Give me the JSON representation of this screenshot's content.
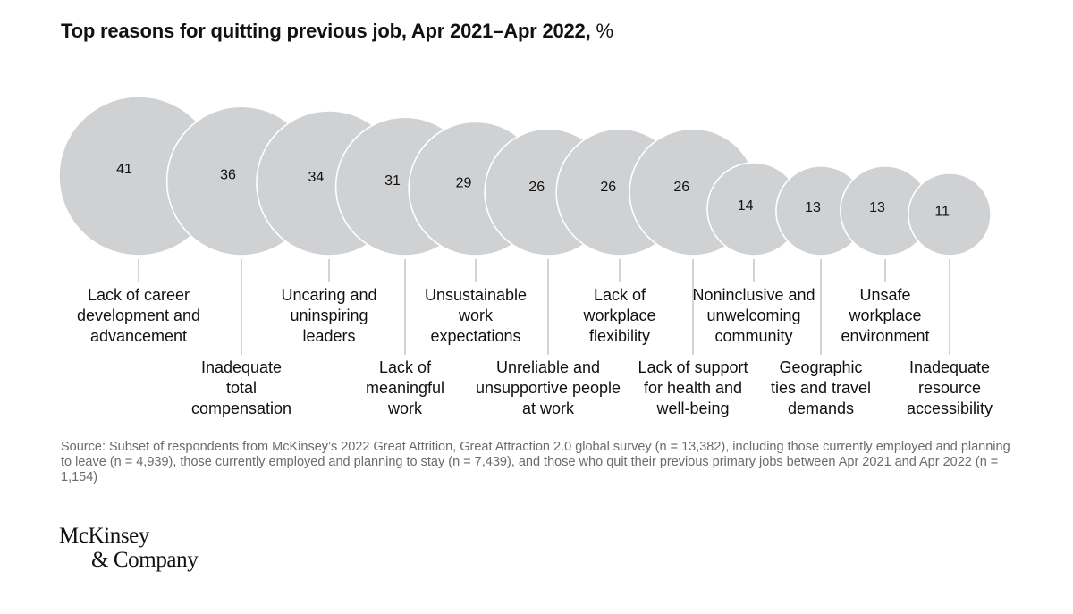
{
  "title": {
    "text": "Top reasons for quitting previous job, Apr 2021–Apr 2022,",
    "unit": "%"
  },
  "chart_data": {
    "type": "bubble",
    "title": "Top reasons for quitting previous job, Apr 2021–Apr 2022, %",
    "unit": "%",
    "categories": [
      "Lack of career development and advancement",
      "Inadequate total compensation",
      "Uncaring and uninspiring leaders",
      "Lack of meaningful work",
      "Unsustainable work expectations",
      "Unreliable and unsupportive people at work",
      "Lack of workplace flexibility",
      "Lack of support for health and well-being",
      "Noninclusive and unwelcoming community",
      "Geographic ties and travel demands",
      "Unsafe workplace environment",
      "Inadequate resource accessibility"
    ],
    "label_lines": [
      [
        "Lack of career",
        "development and",
        "advancement"
      ],
      [
        "Inadequate",
        "total",
        "compensation"
      ],
      [
        "Uncaring and",
        "uninspiring",
        "leaders"
      ],
      [
        "Lack of",
        "meaningful",
        "work"
      ],
      [
        "Unsustainable",
        "work",
        "expectations"
      ],
      [
        "Unreliable and",
        "unsupportive people",
        "at work"
      ],
      [
        "Lack of",
        "workplace",
        "flexibility"
      ],
      [
        "Lack of support",
        "for health and",
        "well-being"
      ],
      [
        "Noninclusive and",
        "unwelcoming",
        "community"
      ],
      [
        "Geographic",
        "ties and travel",
        "demands"
      ],
      [
        "Unsafe",
        "workplace",
        "environment"
      ],
      [
        "Inadequate",
        "resource",
        "accessibility"
      ]
    ],
    "values": [
      41,
      36,
      34,
      31,
      29,
      26,
      26,
      26,
      14,
      13,
      13,
      11
    ],
    "bubble_color": "#d0d1d3",
    "bubble_stroke": "#ffffff",
    "leader_color": "#b8b8b8"
  },
  "source": "Source: Subset of respondents from McKinsey’s 2022 Great Attrition, Great Attraction 2.0 global survey (n = 13,382), including those currently employed and planning to leave (n = 4,939), those currently employed and planning to stay (n = 7,439), and those who quit their previous primary jobs between Apr 2021 and Apr 2022 (n = 1,154)",
  "logo": {
    "line1": "McKinsey",
    "line2": "& Company"
  }
}
